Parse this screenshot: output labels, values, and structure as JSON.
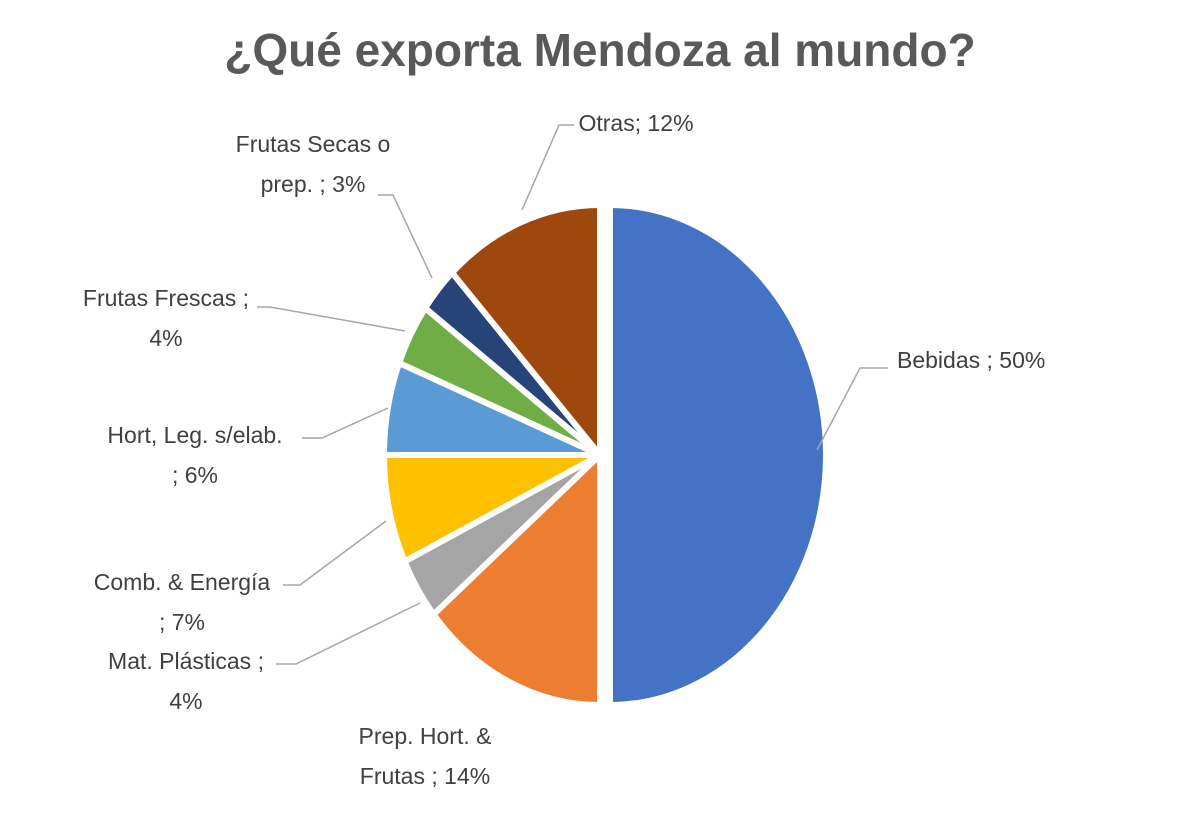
{
  "chart_data": {
    "type": "pie",
    "title": "¿Qué exporta Mendoza al mundo?",
    "slices": [
      {
        "name": "Bebidas",
        "value": 50,
        "color": "#4472c4",
        "label_lines": [
          "Bebidas ; 50%"
        ]
      },
      {
        "name": "Prep. Hort. & Frutas",
        "value": 14,
        "color": "#ed7d31",
        "label_lines": [
          "Prep. Hort. &",
          "Frutas ; 14%"
        ]
      },
      {
        "name": "Mat. Plásticas",
        "value": 4,
        "color": "#a5a5a5",
        "label_lines": [
          "Mat. Plásticas ;",
          "4%"
        ]
      },
      {
        "name": "Comb. & Energía",
        "value": 7,
        "color": "#ffc000",
        "label_lines": [
          "Comb. & Energía",
          "; 7%"
        ]
      },
      {
        "name": "Hort, Leg. s/elab.",
        "value": 6,
        "color": "#5b9bd5",
        "label_lines": [
          "Hort, Leg. s/elab.",
          "; 6%"
        ]
      },
      {
        "name": "Frutas Frescas",
        "value": 4,
        "color": "#70ad47",
        "label_lines": [
          "Frutas Frescas ;",
          "4%"
        ]
      },
      {
        "name": "Frutas Secas o prep.",
        "value": 3,
        "color": "#264478",
        "label_lines": [
          "Frutas Secas o",
          "prep. ; 3%"
        ]
      },
      {
        "name": "Otras",
        "value": 12,
        "color": "#9e480e",
        "label_lines": [
          "Otras; 12%"
        ]
      }
    ],
    "legend": "none",
    "data_labels": "outside-with-leader-lines"
  }
}
